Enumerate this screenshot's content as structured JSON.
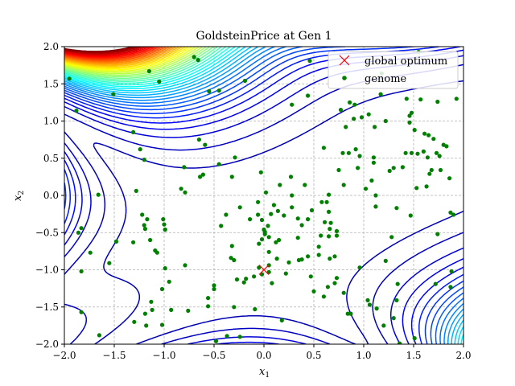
{
  "chart_data": {
    "type": "scatter",
    "title": "GoldsteinPrice at Gen 1",
    "xlabel": "x",
    "xlabel_sub": "1",
    "ylabel": "x",
    "ylabel_sub": "2",
    "xlim": [
      -2.0,
      2.0
    ],
    "ylim": [
      -2.0,
      2.0
    ],
    "xticks": [
      -2.0,
      -1.5,
      -1.0,
      -0.5,
      0.0,
      0.5,
      1.0,
      1.5,
      2.0
    ],
    "yticks": [
      -2.0,
      -1.5,
      -1.0,
      -0.5,
      0.0,
      0.5,
      1.0,
      1.5,
      2.0
    ],
    "xtick_labels": [
      "−2.0",
      "−1.5",
      "−1.0",
      "−0.5",
      "0.0",
      "0.5",
      "1.0",
      "1.5",
      "2.0"
    ],
    "ytick_labels": [
      "−2.0",
      "−1.5",
      "−1.0",
      "−0.5",
      "0.0",
      "0.5",
      "1.0",
      "1.5",
      "2.0"
    ],
    "grid": true,
    "legend_position": "top-right",
    "colors": {
      "genome": "#008000",
      "optimum": "#ff0000",
      "grid": "#b0b0b0"
    },
    "contour": {
      "function": "goldstein-price",
      "colormap": "jet",
      "levels": [
        6000,
        20000,
        40000,
        60000,
        80000,
        100000,
        120000,
        140000,
        160000,
        180000,
        200000,
        220000,
        240000,
        260000,
        280000,
        300000,
        320000,
        340000,
        360000,
        380000,
        400000,
        420000,
        440000,
        460000,
        480000,
        500000,
        520000,
        540000,
        560000,
        580000,
        600000,
        620000,
        640000,
        660000,
        680000,
        700000,
        720000,
        740000,
        760000,
        780000,
        800000,
        820000,
        840000,
        860000,
        880000,
        900000
      ]
    },
    "series": [
      {
        "name": "global optimum",
        "marker": "x",
        "points": [
          [
            0.0,
            -1.0
          ]
        ]
      },
      {
        "name": "genome",
        "marker": "dot",
        "points": [
          [
            -1.95,
            1.57
          ],
          [
            -1.88,
            1.14
          ],
          [
            -1.86,
            -0.5
          ],
          [
            -1.83,
            -0.44
          ],
          [
            -1.83,
            -1.02
          ],
          [
            -1.83,
            -1.57
          ],
          [
            -1.74,
            -0.77
          ],
          [
            -1.66,
            0.01
          ],
          [
            -1.65,
            -1.88
          ],
          [
            -1.55,
            -0.91
          ],
          [
            -1.51,
            1.36
          ],
          [
            -1.48,
            -0.62
          ],
          [
            -1.31,
            0.85
          ],
          [
            -1.31,
            -0.63
          ],
          [
            -1.3,
            -1.7
          ],
          [
            -1.28,
            0.06
          ],
          [
            -1.24,
            0.62
          ],
          [
            -1.22,
            -0.26
          ],
          [
            -1.2,
            0.48
          ],
          [
            -1.2,
            -0.4
          ],
          [
            -1.19,
            -0.45
          ],
          [
            -1.19,
            -1.59
          ],
          [
            -1.18,
            -1.75
          ],
          [
            -1.17,
            -0.32
          ],
          [
            -1.15,
            1.67
          ],
          [
            -1.14,
            -0.6
          ],
          [
            -1.13,
            -1.43
          ],
          [
            -1.12,
            -1.54
          ],
          [
            -1.09,
            -0.74
          ],
          [
            -1.07,
            -0.77
          ],
          [
            -1.05,
            1.53
          ],
          [
            -1.02,
            -1.26
          ],
          [
            -1.02,
            -1.74
          ],
          [
            -1.01,
            -0.32
          ],
          [
            -1.0,
            -0.39
          ],
          [
            -0.99,
            -0.46
          ],
          [
            -0.99,
            -0.46
          ],
          [
            -0.99,
            -0.98
          ],
          [
            -0.95,
            -1.16
          ],
          [
            -0.93,
            -1.54
          ],
          [
            -0.83,
            0.09
          ],
          [
            -0.8,
            0.38
          ],
          [
            -0.79,
            0.04
          ],
          [
            -0.79,
            -0.94
          ],
          [
            -0.76,
            -1.55
          ],
          [
            -0.7,
            1.86
          ],
          [
            -0.66,
            1.82
          ],
          [
            -0.65,
            0.75
          ],
          [
            -0.64,
            0.25
          ],
          [
            -0.61,
            0.28
          ],
          [
            -0.59,
            0.68
          ],
          [
            -0.56,
            -1.38
          ],
          [
            -0.56,
            -1.49
          ],
          [
            -0.55,
            1.4
          ],
          [
            -0.5,
            -1.21
          ],
          [
            -0.5,
            -1.26
          ],
          [
            -0.48,
            -1.96
          ],
          [
            -0.45,
            0.42
          ],
          [
            -0.45,
            1.41
          ],
          [
            -0.43,
            -0.41
          ],
          [
            -0.38,
            -0.26
          ],
          [
            -0.37,
            -1.89
          ],
          [
            -0.33,
            -0.84
          ],
          [
            -0.32,
            -0.68
          ],
          [
            -0.32,
            0.25
          ],
          [
            -0.3,
            -0.87
          ],
          [
            -0.3,
            -1.5
          ],
          [
            -0.29,
            0.51
          ],
          [
            -0.27,
            -1.13
          ],
          [
            -0.24,
            -1.9
          ],
          [
            -0.24,
            -0.16
          ],
          [
            -0.2,
            -1.17
          ],
          [
            -0.19,
            1.54
          ],
          [
            -0.18,
            -1.12
          ],
          [
            -0.14,
            -0.32
          ],
          [
            -0.1,
            -1.09
          ],
          [
            -0.09,
            -1.53
          ],
          [
            -0.06,
            -0.09
          ],
          [
            -0.06,
            -0.26
          ],
          [
            -0.05,
            -0.65
          ],
          [
            -0.05,
            -0.97
          ],
          [
            -0.03,
            0.31
          ],
          [
            -0.02,
            -0.33
          ],
          [
            -0.02,
            -0.59
          ],
          [
            -0.02,
            -1.06
          ],
          [
            0.0,
            -0.46
          ],
          [
            0.01,
            -0.49
          ],
          [
            0.01,
            -0.52
          ],
          [
            0.02,
            0.04
          ],
          [
            0.04,
            -0.41
          ],
          [
            0.05,
            -0.56
          ],
          [
            0.05,
            -0.76
          ],
          [
            0.05,
            -0.94
          ],
          [
            0.05,
            -1.03
          ],
          [
            0.07,
            -0.25
          ],
          [
            0.08,
            -1.18
          ],
          [
            0.1,
            -0.13
          ],
          [
            0.12,
            -0.63
          ],
          [
            0.13,
            -0.85
          ],
          [
            0.14,
            -0.21
          ],
          [
            0.15,
            -0.6
          ],
          [
            0.16,
            0.14
          ],
          [
            0.18,
            -1.68
          ],
          [
            0.2,
            -0.27
          ],
          [
            0.22,
            -1.05
          ],
          [
            0.25,
            -0.9
          ],
          [
            0.27,
            0.25
          ],
          [
            0.28,
            -0.16
          ],
          [
            0.28,
            0.0
          ],
          [
            0.28,
            1.22
          ],
          [
            0.34,
            -0.31
          ],
          [
            0.34,
            -0.57
          ],
          [
            0.35,
            -0.87
          ],
          [
            0.38,
            -0.4
          ],
          [
            0.38,
            -0.86
          ],
          [
            0.41,
            0.14
          ],
          [
            0.44,
            1.34
          ],
          [
            0.44,
            -0.82
          ],
          [
            0.44,
            -0.32
          ],
          [
            0.46,
            1.81
          ],
          [
            0.47,
            -1.09
          ],
          [
            0.48,
            -0.2
          ],
          [
            0.5,
            -1.29
          ],
          [
            0.55,
            -0.69
          ],
          [
            0.55,
            -0.8
          ],
          [
            0.57,
            -0.54
          ],
          [
            0.58,
            -0.09
          ],
          [
            0.6,
            0.64
          ],
          [
            0.6,
            -1.36
          ],
          [
            0.61,
            -0.36
          ],
          [
            0.63,
            -0.09
          ],
          [
            0.64,
            -1.23
          ],
          [
            0.65,
            -0.22
          ],
          [
            0.65,
            -0.55
          ],
          [
            0.65,
            0.01
          ],
          [
            0.66,
            -0.45
          ],
          [
            0.66,
            -0.85
          ],
          [
            0.67,
            -0.37
          ],
          [
            0.71,
            -0.82
          ],
          [
            0.71,
            -1.18
          ],
          [
            0.73,
            -0.54
          ],
          [
            0.73,
            -0.48
          ],
          [
            0.73,
            -1.11
          ],
          [
            0.75,
            0.34
          ],
          [
            0.77,
            1.15
          ],
          [
            0.79,
            0.57
          ],
          [
            0.8,
            0.14
          ],
          [
            0.8,
            -1.31
          ],
          [
            0.82,
            0.92
          ],
          [
            0.84,
            -1.59
          ],
          [
            0.85,
            0.57
          ],
          [
            0.86,
            1.25
          ],
          [
            0.87,
            -1.59
          ],
          [
            0.9,
            1.03
          ],
          [
            0.91,
            1.22
          ],
          [
            0.92,
            0.62
          ],
          [
            0.94,
            0.37
          ],
          [
            0.96,
            0.53
          ],
          [
            0.96,
            -0.97
          ],
          [
            0.98,
            1.05
          ],
          [
            1.02,
            0.09
          ],
          [
            1.04,
            -1.41
          ],
          [
            1.05,
            1.09
          ],
          [
            1.06,
            -1.47
          ],
          [
            1.08,
            0.2
          ],
          [
            1.1,
            0.51
          ],
          [
            1.1,
            0.44
          ],
          [
            1.11,
            0.92
          ],
          [
            1.12,
            0.0
          ],
          [
            1.12,
            -0.15
          ],
          [
            1.13,
            -1.52
          ],
          [
            1.17,
            1.36
          ],
          [
            1.18,
            1.64
          ],
          [
            1.2,
            -1.75
          ],
          [
            1.22,
            -0.88
          ],
          [
            1.22,
            1.0
          ],
          [
            1.26,
            0.33
          ],
          [
            1.28,
            -0.56
          ],
          [
            1.3,
            0.37
          ],
          [
            1.3,
            -1.65
          ],
          [
            1.33,
            -0.17
          ],
          [
            1.33,
            -1.41
          ],
          [
            1.34,
            -1.19
          ],
          [
            1.36,
            -1.99
          ],
          [
            1.39,
            0.38
          ],
          [
            1.42,
            0.57
          ],
          [
            1.43,
            1.3
          ],
          [
            1.46,
            0.98
          ],
          [
            1.46,
            1.07
          ],
          [
            1.47,
            -0.27
          ],
          [
            1.48,
            0.57
          ],
          [
            1.48,
            1.11
          ],
          [
            1.51,
            -1.92
          ],
          [
            1.51,
            0.88
          ],
          [
            1.53,
            0.1
          ],
          [
            1.54,
            0.56
          ],
          [
            1.55,
            1.93
          ],
          [
            1.57,
            1.29
          ],
          [
            1.6,
            0.59
          ],
          [
            1.61,
            0.83
          ],
          [
            1.63,
            0.12
          ],
          [
            1.64,
            0.51
          ],
          [
            1.65,
            0.81
          ],
          [
            1.66,
            0.29
          ],
          [
            1.68,
            0.34
          ],
          [
            1.7,
            0.76
          ],
          [
            1.72,
            -1.19
          ],
          [
            1.73,
            0.57
          ],
          [
            1.74,
            1.26
          ],
          [
            1.74,
            -0.52
          ],
          [
            1.76,
            0.53
          ],
          [
            1.77,
            0.34
          ],
          [
            1.8,
            0.68
          ],
          [
            1.83,
            0.66
          ],
          [
            1.86,
            0.23
          ],
          [
            1.87,
            -0.23
          ],
          [
            1.87,
            -1.23
          ],
          [
            1.88,
            -1.02
          ],
          [
            1.9,
            -0.26
          ],
          [
            1.93,
            1.3
          ]
        ]
      }
    ]
  }
}
